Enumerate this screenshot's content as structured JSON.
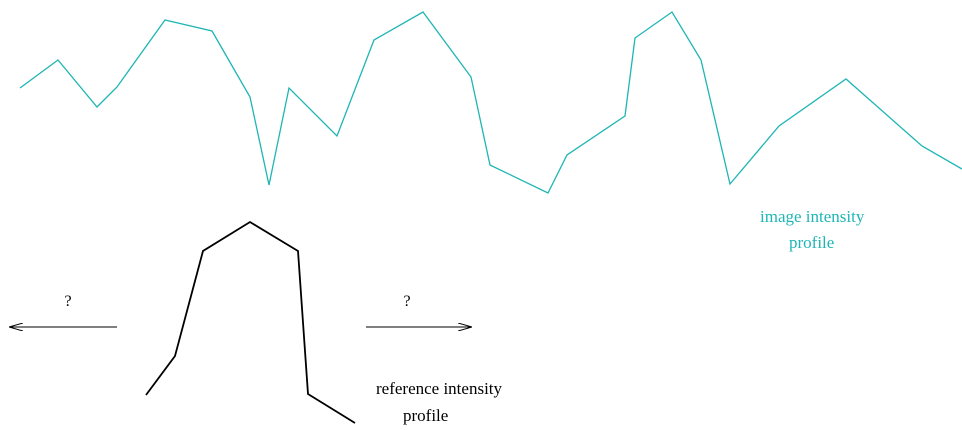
{
  "image_profile": {
    "label_line1": "image intensity",
    "label_line2": "profile",
    "color": "#1fb5b5"
  },
  "reference_profile": {
    "label_line1": "reference intensity",
    "label_line2": "profile",
    "color": "#000000"
  },
  "left_arrow": {
    "label": "?"
  },
  "right_arrow": {
    "label": "?"
  }
}
